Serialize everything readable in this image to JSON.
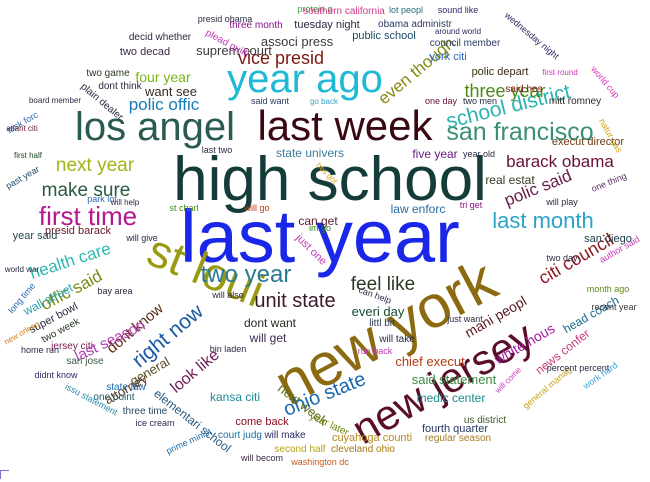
{
  "words": [
    {
      "text": "last year",
      "color": "#1a27e8"
    },
    {
      "text": "high school",
      "color": "#143d3a"
    },
    {
      "text": "new york",
      "color": "#8b6a12"
    },
    {
      "text": "st loui",
      "color": "#9a9a12"
    },
    {
      "text": "year ago",
      "color": "#1fb9d6"
    },
    {
      "text": "last week",
      "color": "#3a0812"
    },
    {
      "text": "los angel",
      "color": "#2a5a52"
    },
    {
      "text": "new jersey",
      "color": "#5a0e2c"
    },
    {
      "text": "first time",
      "color": "#b5178c"
    },
    {
      "text": "last month",
      "color": "#2aa3c8"
    },
    {
      "text": "san francisco",
      "color": "#3a8f74"
    },
    {
      "text": "school district",
      "color": "#2db2b2"
    },
    {
      "text": "next year",
      "color": "#a3b317"
    },
    {
      "text": "two year",
      "color": "#2a7a92"
    },
    {
      "text": "right now",
      "color": "#1a5aa2"
    },
    {
      "text": "three year",
      "color": "#4a8a12"
    },
    {
      "text": "make sure",
      "color": "#2a5a42"
    },
    {
      "text": "polic offic",
      "color": "#1a7ab8"
    },
    {
      "text": "vice presid",
      "color": "#7a1a12"
    },
    {
      "text": "even though",
      "color": "#8a8a12"
    },
    {
      "text": "ohio state",
      "color": "#1a6ab0"
    },
    {
      "text": "unit state",
      "color": "#3a1a2a"
    },
    {
      "text": "feel like",
      "color": "#2a3a22"
    },
    {
      "text": "health care",
      "color": "#2db6b0"
    },
    {
      "text": "offic said",
      "color": "#7a8a12"
    },
    {
      "text": "barack obama",
      "color": "#6a0e3a"
    },
    {
      "text": "citi council",
      "color": "#8a1a22"
    },
    {
      "text": "polic said",
      "color": "#6a1a4a"
    },
    {
      "text": "dont know",
      "color": "#5a2a12"
    },
    {
      "text": "look like",
      "color": "#6a1a52"
    },
    {
      "text": "last season",
      "color": "#b53ab8"
    },
    {
      "text": "mani peopl",
      "color": "#5a1a22"
    },
    {
      "text": "white hous",
      "color": "#a3179c"
    },
    {
      "text": "head coach",
      "color": "#1a6a8a"
    },
    {
      "text": "chief execut",
      "color": "#b53a12"
    },
    {
      "text": "news confer",
      "color": "#c53a7c"
    },
    {
      "text": "medic center",
      "color": "#1a8a8a"
    },
    {
      "text": "said statement",
      "color": "#3a8a42"
    },
    {
      "text": "kansa citi",
      "color": "#1a8a9a"
    },
    {
      "text": "elementari school",
      "color": "#2a5a82"
    },
    {
      "text": "next week",
      "color": "#5a6a12"
    },
    {
      "text": "general",
      "color": "#5a4a22"
    },
    {
      "text": "attorney",
      "color": "#5a3a22"
    },
    {
      "text": "everi day",
      "color": "#1a4a32"
    },
    {
      "text": "dont want",
      "color": "#2a2a22"
    },
    {
      "text": "will get",
      "color": "#3a2a52"
    },
    {
      "text": "can get",
      "color": "#5a1a32"
    },
    {
      "text": "law enforc",
      "color": "#2a6aa2"
    },
    {
      "text": "five year",
      "color": "#6a1a82"
    },
    {
      "text": "real estat",
      "color": "#3a3a22"
    },
    {
      "text": "execut director",
      "color": "#6a3a12"
    },
    {
      "text": "san diego",
      "color": "#1a3a42"
    },
    {
      "text": "state univers",
      "color": "#3a7aa2"
    },
    {
      "text": "four year",
      "color": "#7ab517"
    },
    {
      "text": "suprem court",
      "color": "#3a3a3a"
    },
    {
      "text": "associ press",
      "color": "#3a3a42"
    },
    {
      "text": "public school",
      "color": "#1a4a62"
    },
    {
      "text": "york citi",
      "color": "#2a6ab8"
    },
    {
      "text": "polic depart",
      "color": "#3a2a12"
    },
    {
      "text": "presid barack",
      "color": "#6a1a2a"
    },
    {
      "text": "year said",
      "color": "#2a4a52"
    },
    {
      "text": "wall street",
      "color": "#2aa3b0"
    },
    {
      "text": "super bowl",
      "color": "#2a2a42"
    },
    {
      "text": "two week",
      "color": "#2a3a22"
    },
    {
      "text": "jersey citi",
      "color": "#7a1a52"
    },
    {
      "text": "san jose",
      "color": "#3a5a42"
    },
    {
      "text": "state law",
      "color": "#1a6ab0"
    },
    {
      "text": "three time",
      "color": "#2a4a62"
    },
    {
      "text": "court judg",
      "color": "#1a6aa2"
    },
    {
      "text": "will make",
      "color": "#2a2a62"
    },
    {
      "text": "second half",
      "color": "#b5a317"
    },
    {
      "text": "cleveland ohio",
      "color": "#a37a12"
    },
    {
      "text": "cuyahoga counti",
      "color": "#b58a22"
    },
    {
      "text": "regular season",
      "color": "#a37a22"
    },
    {
      "text": "fourth quarter",
      "color": "#2a3a62"
    },
    {
      "text": "us district",
      "color": "#3a5a22"
    },
    {
      "text": "come back",
      "color": "#8a0e22"
    },
    {
      "text": "year later",
      "color": "#6a8a12"
    },
    {
      "text": "washington dc",
      "color": "#c55a17"
    },
    {
      "text": "will becom",
      "color": "#3a2a42"
    },
    {
      "text": "ice cream",
      "color": "#2a2a52"
    },
    {
      "text": "prime minist",
      "color": "#1a6aa2"
    },
    {
      "text": "bin laden",
      "color": "#2a2a42"
    },
    {
      "text": "one point",
      "color": "#1a5a6a"
    },
    {
      "text": "didnt know",
      "color": "#2a2a62"
    },
    {
      "text": "issu statement",
      "color": "#2a8aa2"
    },
    {
      "text": "want see",
      "color": "#3a2a22"
    },
    {
      "text": "dont think",
      "color": "#2a2a42"
    },
    {
      "text": "two game",
      "color": "#2a3a22"
    },
    {
      "text": "plain dealer",
      "color": "#2a2a42"
    },
    {
      "text": "two decad",
      "color": "#3a2a42"
    },
    {
      "text": "decid whether",
      "color": "#2a2a42"
    },
    {
      "text": "plead guilti",
      "color": "#c53ab8"
    },
    {
      "text": "presid obama",
      "color": "#2a2a42"
    },
    {
      "text": "three month",
      "color": "#8a0e8a"
    },
    {
      "text": "tuesday night",
      "color": "#2a2a42"
    },
    {
      "text": "obama administr",
      "color": "#2a3a62"
    },
    {
      "text": "protein g",
      "color": "#3aa342"
    },
    {
      "text": "southern california",
      "color": "#d53a8a"
    },
    {
      "text": "lot peopl",
      "color": "#2a6a82"
    },
    {
      "text": "sound like",
      "color": "#2a2a62"
    },
    {
      "text": "around world",
      "color": "#2a2a62"
    },
    {
      "text": "council member",
      "color": "#2a3a62"
    },
    {
      "text": "wednesday night",
      "color": "#2a2a62"
    },
    {
      "text": "world cup",
      "color": "#d53ab8"
    },
    {
      "text": "first round",
      "color": "#c53ab8"
    },
    {
      "text": "mitt romney",
      "color": "#2a2a22"
    },
    {
      "text": "natur gas",
      "color": "#d5a317"
    },
    {
      "text": "two men",
      "color": "#2a2a42"
    },
    {
      "text": "one day",
      "color": "#6a0e3a"
    },
    {
      "text": "said hes",
      "color": "#8a1a22"
    },
    {
      "text": "go back",
      "color": "#3aa3c8"
    },
    {
      "text": "said want",
      "color": "#2a3a62"
    },
    {
      "text": "task forc",
      "color": "#2a6ab0"
    },
    {
      "text": "board member",
      "color": "#2a2a42"
    },
    {
      "text": "atlant citi",
      "color": "#6a1a22"
    },
    {
      "text": "first half",
      "color": "#1a4a22"
    },
    {
      "text": "past year",
      "color": "#1a4a62"
    },
    {
      "text": "last two",
      "color": "#2a2a42"
    },
    {
      "text": "year old",
      "color": "#2a2a42"
    },
    {
      "text": "one thing",
      "color": "#5a2a62"
    },
    {
      "text": "hes got",
      "color": "#d5a317"
    },
    {
      "text": "park lot",
      "color": "#2a6ab0"
    },
    {
      "text": "will help",
      "color": "#2a2a42"
    },
    {
      "text": "st charl",
      "color": "#4a8a12"
    },
    {
      "text": "will go",
      "color": "#c53a12"
    },
    {
      "text": "tri get",
      "color": "#8a0e8a"
    },
    {
      "text": "will play",
      "color": "#2a2a42"
    },
    {
      "text": "im go",
      "color": "#2a8a12"
    },
    {
      "text": "author said",
      "color": "#c53ab8"
    },
    {
      "text": "just one",
      "color": "#c53ab8"
    },
    {
      "text": "two day",
      "color": "#2a2a42"
    },
    {
      "text": "will give",
      "color": "#2a2a42"
    },
    {
      "text": "world war",
      "color": "#2a2a42"
    },
    {
      "text": "long time",
      "color": "#2a6ab0"
    },
    {
      "text": "bay area",
      "color": "#2a2a42"
    },
    {
      "text": "will also",
      "color": "#2a2a42"
    },
    {
      "text": "can help",
      "color": "#2a2a42"
    },
    {
      "text": "month ago",
      "color": "#5a8a12"
    },
    {
      "text": "recent year",
      "color": "#3a3a42"
    },
    {
      "text": "littl bit",
      "color": "#2a3a52"
    },
    {
      "text": "just want",
      "color": "#2a2a42"
    },
    {
      "text": "new orlean",
      "color": "#d57a17"
    },
    {
      "text": "run back",
      "color": "#c53ab8"
    },
    {
      "text": "will take",
      "color": "#2a2a42"
    },
    {
      "text": "home run",
      "color": "#2a2a42"
    },
    {
      "text": "will come",
      "color": "#c53ab8"
    },
    {
      "text": "general manag",
      "color": "#c5a317"
    },
    {
      "text": "percent percent",
      "color": "#2a2a42"
    },
    {
      "text": "work hard",
      "color": "#3aa3d6"
    }
  ]
}
